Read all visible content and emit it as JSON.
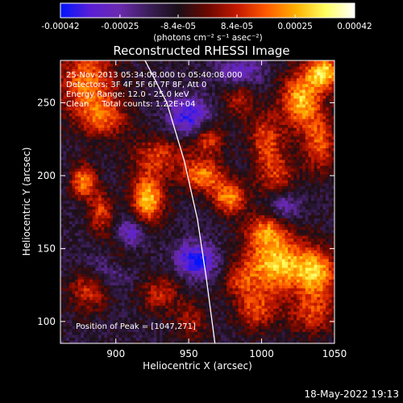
{
  "chart_data": {
    "type": "heatmap",
    "title": "Reconstructed RHESSI Image",
    "xlabel": "Heliocentric X (arcsec)",
    "ylabel": "Heliocentric Y (arcsec)",
    "xlim": [
      862,
      1050
    ],
    "ylim": [
      85,
      279
    ],
    "x_ticks": [
      900,
      950,
      1000,
      1050
    ],
    "y_ticks": [
      100,
      150,
      200,
      250
    ],
    "colorbar": {
      "range": [
        -0.00042,
        0.00042
      ],
      "tick_values": [
        -0.00042,
        -0.00025,
        -8.4e-05,
        8.4e-05,
        0.00025,
        0.00042
      ],
      "tick_labels": [
        "-0.00042",
        "-0.00025",
        "-8.4e-05",
        "8.4e-05",
        "0.00025",
        "0.00042"
      ],
      "unit_label": "(photons cm⁻² s⁻¹ asec⁻²)",
      "stops": [
        "#0014ff",
        "#5a1fd6",
        "#6b2ab0",
        "#3b1e58",
        "#1a0f18",
        "#6a0800",
        "#c41800",
        "#ff5a00",
        "#ffb000",
        "#ffff60",
        "#ffffff"
      ]
    },
    "annotations": [
      "25-Nov-2013 05:34:08.000 to 05:40:08.000",
      "Detectors: 3F 4F 5F 6F 7F 8F, Att 0",
      "Energy Range: 12.0 - 25.0 keV",
      "Clean     Total counts: 1.22E+04"
    ],
    "peak_label": "Position of Peak = [1047,271]",
    "limb": {
      "points": [
        [
          920,
          279
        ],
        [
          935,
          250
        ],
        [
          947,
          210
        ],
        [
          956,
          170
        ],
        [
          962,
          130
        ],
        [
          968,
          85
        ]
      ]
    },
    "hot_regions": [
      {
        "x": 880,
        "y": 265,
        "v": 0.0003,
        "sx": 14,
        "sy": 18
      },
      {
        "x": 892,
        "y": 240,
        "v": 0.00022,
        "sx": 12,
        "sy": 10
      },
      {
        "x": 878,
        "y": 196,
        "v": 0.00034,
        "sx": 6,
        "sy": 8
      },
      {
        "x": 890,
        "y": 175,
        "v": 0.00024,
        "sx": 6,
        "sy": 10
      },
      {
        "x": 922,
        "y": 184,
        "v": 0.0004,
        "sx": 8,
        "sy": 12
      },
      {
        "x": 930,
        "y": 214,
        "v": 0.00022,
        "sx": 14,
        "sy": 10
      },
      {
        "x": 903,
        "y": 140,
        "v": 0.0003,
        "sx": 10,
        "sy": 12
      },
      {
        "x": 882,
        "y": 122,
        "v": 0.00024,
        "sx": 10,
        "sy": 10
      },
      {
        "x": 930,
        "y": 120,
        "v": 0.0002,
        "sx": 10,
        "sy": 10
      },
      {
        "x": 952,
        "y": 100,
        "v": 0.00016,
        "sx": 8,
        "sy": 10
      },
      {
        "x": 960,
        "y": 200,
        "v": 0.00032,
        "sx": 10,
        "sy": 8
      },
      {
        "x": 963,
        "y": 225,
        "v": 0.00024,
        "sx": 8,
        "sy": 8
      },
      {
        "x": 978,
        "y": 185,
        "v": 0.00034,
        "sx": 8,
        "sy": 8
      },
      {
        "x": 985,
        "y": 255,
        "v": 0.0002,
        "sx": 8,
        "sy": 10
      },
      {
        "x": 1003,
        "y": 226,
        "v": 0.00024,
        "sx": 8,
        "sy": 12
      },
      {
        "x": 1010,
        "y": 200,
        "v": 0.00022,
        "sx": 10,
        "sy": 12
      },
      {
        "x": 1027,
        "y": 252,
        "v": 0.00038,
        "sx": 10,
        "sy": 14
      },
      {
        "x": 1040,
        "y": 222,
        "v": 0.00026,
        "sx": 8,
        "sy": 14
      },
      {
        "x": 1043,
        "y": 271,
        "v": 0.00042,
        "sx": 8,
        "sy": 8
      },
      {
        "x": 1003,
        "y": 163,
        "v": 0.00026,
        "sx": 10,
        "sy": 8
      },
      {
        "x": 1010,
        "y": 140,
        "v": 0.0004,
        "sx": 16,
        "sy": 14
      },
      {
        "x": 1038,
        "y": 133,
        "v": 0.00034,
        "sx": 10,
        "sy": 12
      },
      {
        "x": 1035,
        "y": 105,
        "v": 0.00022,
        "sx": 12,
        "sy": 10
      },
      {
        "x": 996,
        "y": 108,
        "v": 0.00024,
        "sx": 10,
        "sy": 10
      },
      {
        "x": 985,
        "y": 128,
        "v": 0.00016,
        "sx": 8,
        "sy": 8
      }
    ],
    "cold_regions": [
      {
        "x": 900,
        "y": 135,
        "v": -0.00034,
        "sx": 12,
        "sy": 10
      },
      {
        "x": 955,
        "y": 142,
        "v": -0.0003,
        "sx": 10,
        "sy": 8
      },
      {
        "x": 950,
        "y": 240,
        "v": -0.00026,
        "sx": 10,
        "sy": 10
      },
      {
        "x": 910,
        "y": 160,
        "v": -0.00022,
        "sx": 8,
        "sy": 8
      },
      {
        "x": 1015,
        "y": 180,
        "v": -0.00018,
        "sx": 8,
        "sy": 8
      },
      {
        "x": 985,
        "y": 270,
        "v": -0.00022,
        "sx": 10,
        "sy": 8
      }
    ]
  },
  "timestamp": "18-May-2022 19:13"
}
